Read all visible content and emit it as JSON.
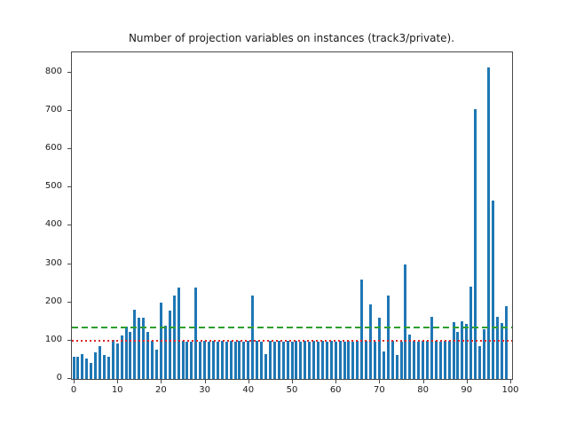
{
  "title": "Number of projection variables on instances (track3/private).",
  "colors": {
    "bar": "#1f77b4",
    "mean_line": "#2e9e2e",
    "median_line": "#e02626",
    "spine": "#4a4a4a",
    "text": "#1a1a1a"
  },
  "chart_data": {
    "type": "bar",
    "title": "Number of projection variables on instances (track3/private).",
    "xlabel": "",
    "ylabel": "",
    "grid": false,
    "legend": null,
    "xlim": [
      0,
      100
    ],
    "ylim": [
      0,
      853
    ],
    "x_ticks": [
      0,
      10,
      20,
      30,
      40,
      50,
      60,
      70,
      80,
      90,
      100
    ],
    "y_ticks": [
      0,
      100,
      200,
      300,
      400,
      500,
      600,
      700,
      800
    ],
    "x": [
      0,
      1,
      2,
      3,
      4,
      5,
      6,
      7,
      8,
      9,
      10,
      11,
      12,
      13,
      14,
      15,
      16,
      17,
      18,
      19,
      20,
      21,
      22,
      23,
      24,
      25,
      26,
      27,
      28,
      29,
      30,
      31,
      32,
      33,
      34,
      35,
      36,
      37,
      38,
      39,
      40,
      41,
      42,
      43,
      44,
      45,
      46,
      47,
      48,
      49,
      50,
      51,
      52,
      53,
      54,
      55,
      56,
      57,
      58,
      59,
      60,
      61,
      62,
      63,
      64,
      65,
      66,
      67,
      68,
      69,
      70,
      71,
      72,
      73,
      74,
      75,
      76,
      77,
      78,
      79,
      80,
      81,
      82,
      83,
      84,
      85,
      86,
      87,
      88,
      89,
      90,
      91,
      92,
      93,
      94,
      95,
      96,
      97,
      98,
      99
    ],
    "values": [
      58,
      58,
      64,
      53,
      42,
      70,
      85,
      62,
      57,
      103,
      92,
      114,
      137,
      122,
      180,
      160,
      160,
      123,
      99,
      77,
      200,
      138,
      178,
      219,
      239,
      99,
      98,
      98,
      239,
      98,
      99,
      98,
      99,
      98,
      99,
      98,
      99,
      98,
      99,
      98,
      99,
      218,
      99,
      98,
      66,
      99,
      98,
      99,
      98,
      99,
      98,
      99,
      98,
      99,
      98,
      99,
      98,
      99,
      98,
      99,
      98,
      99,
      98,
      99,
      98,
      99,
      260,
      99,
      195,
      98,
      159,
      72,
      219,
      99,
      62,
      98,
      300,
      116,
      99,
      98,
      100,
      99,
      162,
      99,
      98,
      100,
      99,
      148,
      122,
      150,
      143,
      240,
      705,
      85,
      130,
      813,
      465,
      162,
      147,
      190
    ],
    "ref_lines": [
      {
        "name": "mean",
        "value": 134,
        "style": "dashed",
        "color": "#2e9e2e"
      },
      {
        "name": "median",
        "value": 99,
        "style": "dotted",
        "color": "#e02626"
      }
    ]
  }
}
